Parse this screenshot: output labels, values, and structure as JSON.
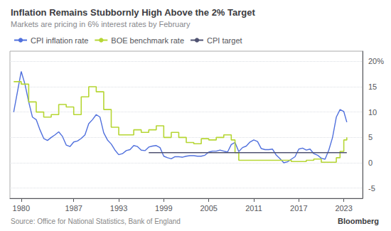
{
  "chart_data": {
    "type": "line",
    "title": "Inflation Remains Stubbornly High Above the 2% Target",
    "subtitle": "Markets are pricing in 6% interest rates by February",
    "annotations": [
      "Source: Office for National Statistics, Bank of England",
      "Bloomberg"
    ],
    "legend": "top-left",
    "grid": true,
    "xlim": [
      1978.5,
      2025.5
    ],
    "xticks": [
      1980,
      1987,
      1993,
      1999,
      2005,
      2011,
      2017,
      2023
    ],
    "ylim": [
      -7,
      22
    ],
    "yticks": [
      {
        "value": 20,
        "label": "20%"
      },
      15,
      10,
      5,
      0,
      -5
    ],
    "series": [
      {
        "name": "CPI inflation rate",
        "type": "line",
        "x": [
          1979.0,
          1979.5,
          1980.0,
          1980.5,
          1981.0,
          1981.5,
          1982.0,
          1982.5,
          1983.0,
          1983.5,
          1984.0,
          1984.5,
          1985.0,
          1985.5,
          1986.0,
          1986.5,
          1987.0,
          1987.5,
          1988.0,
          1988.5,
          1989.0,
          1989.5,
          1990.0,
          1990.5,
          1991.0,
          1991.5,
          1992.0,
          1992.5,
          1993.0,
          1993.5,
          1994.0,
          1994.5,
          1995.0,
          1995.5,
          1996.0,
          1996.5,
          1997.0,
          1997.5,
          1998.0,
          1998.5,
          1999.0,
          1999.5,
          2000.0,
          2000.5,
          2001.0,
          2001.5,
          2002.0,
          2002.5,
          2003.0,
          2003.5,
          2004.0,
          2004.5,
          2005.0,
          2005.5,
          2006.0,
          2006.5,
          2007.0,
          2007.5,
          2008.0,
          2008.5,
          2009.0,
          2009.5,
          2010.0,
          2010.5,
          2011.0,
          2011.5,
          2012.0,
          2012.5,
          2013.0,
          2013.5,
          2014.0,
          2014.5,
          2015.0,
          2015.5,
          2016.0,
          2016.5,
          2017.0,
          2017.5,
          2018.0,
          2018.5,
          2019.0,
          2019.5,
          2020.0,
          2020.5,
          2021.0,
          2021.5,
          2022.0,
          2022.5,
          2023.0,
          2023.4
        ],
        "values": [
          10.0,
          14.0,
          18.0,
          15.5,
          12.0,
          9.0,
          8.5,
          6.5,
          4.8,
          4.4,
          5.0,
          5.5,
          6.1,
          5.2,
          3.5,
          3.2,
          4.1,
          4.3,
          4.8,
          5.5,
          7.7,
          8.5,
          9.5,
          9.0,
          5.9,
          4.5,
          3.7,
          2.5,
          1.6,
          1.8,
          2.4,
          2.6,
          3.4,
          3.2,
          2.5,
          2.4,
          3.1,
          3.3,
          3.4,
          3.0,
          1.3,
          1.0,
          0.8,
          1.2,
          1.2,
          1.1,
          1.3,
          1.4,
          1.4,
          1.3,
          1.3,
          1.5,
          2.1,
          2.3,
          2.3,
          2.5,
          2.3,
          2.1,
          3.6,
          4.0,
          2.2,
          3.0,
          3.3,
          4.1,
          4.5,
          4.2,
          2.8,
          2.6,
          2.6,
          2.7,
          1.5,
          0.8,
          0.0,
          0.2,
          0.7,
          1.2,
          2.7,
          2.9,
          2.5,
          2.7,
          1.8,
          1.5,
          0.9,
          0.7,
          2.5,
          5.0,
          9.0,
          10.5,
          10.1,
          8.0
        ]
      },
      {
        "name": "BOE benchmark rate",
        "type": "step",
        "x": [
          1979.0,
          1980.0,
          1981.0,
          1982.0,
          1983.0,
          1984.0,
          1985.0,
          1986.0,
          1987.0,
          1988.0,
          1989.0,
          1990.0,
          1991.0,
          1992.0,
          1993.0,
          1994.0,
          1995.0,
          1996.0,
          1997.0,
          1998.0,
          1999.0,
          2000.0,
          2001.0,
          2002.0,
          2003.0,
          2004.0,
          2005.0,
          2006.0,
          2007.0,
          2007.5,
          2008.0,
          2008.5,
          2009.0,
          2010.0,
          2011.0,
          2012.0,
          2013.0,
          2014.0,
          2015.0,
          2016.0,
          2016.5,
          2017.0,
          2018.0,
          2019.0,
          2020.0,
          2021.0,
          2022.0,
          2022.5,
          2023.0,
          2023.4
        ],
        "values": [
          16.0,
          15.5,
          12.0,
          10.0,
          9.0,
          9.5,
          11.5,
          11.0,
          9.5,
          13.0,
          15.0,
          14.0,
          10.5,
          7.0,
          5.5,
          5.5,
          6.5,
          6.0,
          6.5,
          7.3,
          5.0,
          6.0,
          5.0,
          4.0,
          3.75,
          4.75,
          4.5,
          5.0,
          5.5,
          5.5,
          4.5,
          2.0,
          0.5,
          0.5,
          0.5,
          0.5,
          0.5,
          0.5,
          0.5,
          0.25,
          0.25,
          0.25,
          0.5,
          0.75,
          0.1,
          0.1,
          1.0,
          2.25,
          4.5,
          5.0
        ]
      },
      {
        "name": "CPI target",
        "type": "line",
        "x": [
          1997.0,
          2023.4
        ],
        "values": [
          2.0,
          2.0
        ]
      }
    ]
  }
}
